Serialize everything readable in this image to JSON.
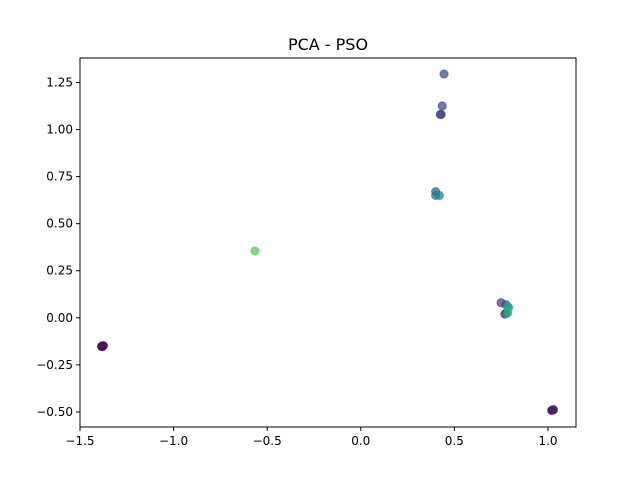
{
  "chart_data": {
    "type": "scatter",
    "title": "PCA - PSO",
    "xlabel": "",
    "ylabel": "",
    "xlim": [
      -1.5,
      1.15
    ],
    "ylim": [
      -0.58,
      1.38
    ],
    "x_ticks": [
      -1.5,
      -1.0,
      -0.5,
      0.0,
      0.5,
      1.0
    ],
    "x_tick_labels": [
      "−1.5",
      "−1.0",
      "−0.5",
      "0.0",
      "0.5",
      "1.0"
    ],
    "y_ticks": [
      -0.5,
      -0.25,
      0.0,
      0.25,
      0.5,
      0.75,
      1.0,
      1.25
    ],
    "y_tick_labels": [
      "−0.50",
      "−0.25",
      "0.00",
      "0.25",
      "0.50",
      "0.75",
      "1.00",
      "1.25"
    ],
    "grid": false,
    "legend": "none",
    "colormap": "viridis",
    "points": [
      {
        "x": -1.38,
        "y": -0.15,
        "color": "#440154"
      },
      {
        "x": -1.385,
        "y": -0.152,
        "color": "#440154"
      },
      {
        "x": -1.375,
        "y": -0.148,
        "color": "#46085c"
      },
      {
        "x": -1.38,
        "y": -0.153,
        "color": "#481467"
      },
      {
        "x": 1.025,
        "y": -0.49,
        "color": "#440154"
      },
      {
        "x": 1.02,
        "y": -0.492,
        "color": "#471063"
      },
      {
        "x": 1.03,
        "y": -0.488,
        "color": "#482173"
      },
      {
        "x": 0.445,
        "y": 1.295,
        "color": "#3b528b"
      },
      {
        "x": 0.435,
        "y": 1.125,
        "color": "#3e4c8a"
      },
      {
        "x": 0.43,
        "y": 1.08,
        "color": "#3b528b"
      },
      {
        "x": 0.425,
        "y": 1.08,
        "color": "#414487"
      },
      {
        "x": 0.4,
        "y": 0.67,
        "color": "#31688e"
      },
      {
        "x": 0.4,
        "y": 0.65,
        "color": "#2c728e"
      },
      {
        "x": 0.42,
        "y": 0.65,
        "color": "#26828e"
      },
      {
        "x": -0.565,
        "y": 0.355,
        "color": "#5ec962"
      },
      {
        "x": 0.75,
        "y": 0.08,
        "color": "#5b3a8d"
      },
      {
        "x": 0.775,
        "y": 0.07,
        "color": "#3e4a89"
      },
      {
        "x": 0.785,
        "y": 0.06,
        "color": "#1f9e89"
      },
      {
        "x": 0.79,
        "y": 0.055,
        "color": "#22a884"
      },
      {
        "x": 0.78,
        "y": 0.03,
        "color": "#35b779"
      },
      {
        "x": 0.77,
        "y": 0.02,
        "color": "#482475"
      },
      {
        "x": 0.785,
        "y": 0.025,
        "color": "#29af7f"
      }
    ]
  }
}
